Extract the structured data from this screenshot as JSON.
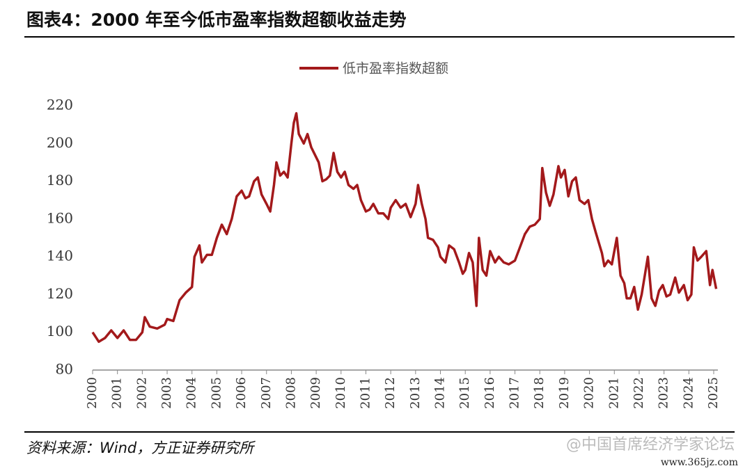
{
  "chart_data": {
    "type": "line",
    "title": "图表4：2000 年至今低市盈率指数超额收益走势",
    "source": "资料来源：Wind，方正证券研究所",
    "watermark": "@中国首席经济学家论坛",
    "watermark_url": "www.365jz.com",
    "xlim": [
      2000,
      2025
    ],
    "xticks": [
      2000,
      2001,
      2002,
      2003,
      2004,
      2005,
      2006,
      2007,
      2008,
      2009,
      2010,
      2011,
      2012,
      2013,
      2014,
      2015,
      2016,
      2017,
      2018,
      2019,
      2020,
      2021,
      2022,
      2023,
      2024,
      2025
    ],
    "ylim": [
      80,
      220
    ],
    "yticks": [
      80,
      100,
      120,
      140,
      160,
      180,
      200,
      220
    ],
    "legend": "top",
    "series": [
      {
        "name": "低市盈率指数超额",
        "color": "#a3191b",
        "x": [
          2000.0,
          2000.25,
          2000.5,
          2000.75,
          2001.0,
          2001.25,
          2001.5,
          2001.75,
          2002.0,
          2002.1,
          2002.3,
          2002.6,
          2002.9,
          2003.0,
          2003.25,
          2003.5,
          2003.75,
          2004.0,
          2004.1,
          2004.3,
          2004.4,
          2004.6,
          2004.8,
          2005.0,
          2005.2,
          2005.4,
          2005.6,
          2005.8,
          2006.0,
          2006.15,
          2006.3,
          2006.5,
          2006.65,
          2006.8,
          2007.0,
          2007.15,
          2007.3,
          2007.4,
          2007.55,
          2007.7,
          2007.85,
          2008.0,
          2008.1,
          2008.2,
          2008.3,
          2008.5,
          2008.65,
          2008.8,
          2008.95,
          2009.1,
          2009.25,
          2009.4,
          2009.55,
          2009.7,
          2009.85,
          2010.0,
          2010.15,
          2010.3,
          2010.5,
          2010.65,
          2010.8,
          2011.0,
          2011.15,
          2011.3,
          2011.5,
          2011.7,
          2011.9,
          2012.0,
          2012.2,
          2012.4,
          2012.6,
          2012.8,
          2013.0,
          2013.1,
          2013.25,
          2013.4,
          2013.5,
          2013.7,
          2013.9,
          2014.0,
          2014.2,
          2014.35,
          2014.55,
          2014.75,
          2014.9,
          2015.0,
          2015.15,
          2015.3,
          2015.45,
          2015.55,
          2015.7,
          2015.85,
          2016.0,
          2016.2,
          2016.35,
          2016.55,
          2016.75,
          2017.0,
          2017.2,
          2017.4,
          2017.6,
          2017.8,
          2018.0,
          2018.1,
          2018.25,
          2018.4,
          2018.55,
          2018.75,
          2018.85,
          2019.0,
          2019.15,
          2019.3,
          2019.45,
          2019.6,
          2019.8,
          2019.95,
          2020.1,
          2020.25,
          2020.5,
          2020.6,
          2020.75,
          2020.9,
          2021.1,
          2021.25,
          2021.4,
          2021.5,
          2021.65,
          2021.8,
          2021.95,
          2022.1,
          2022.25,
          2022.35,
          2022.5,
          2022.65,
          2022.8,
          2022.95,
          2023.1,
          2023.25,
          2023.45,
          2023.6,
          2023.8,
          2023.95,
          2024.1,
          2024.2,
          2024.35,
          2024.5,
          2024.7,
          2024.85,
          2024.95,
          2025.1
        ],
        "values": [
          100,
          95,
          97,
          101,
          97,
          101,
          96,
          96,
          100,
          108,
          103,
          102,
          104,
          107,
          106,
          117,
          121,
          124,
          140,
          146,
          137,
          141,
          141,
          150,
          157,
          152,
          160,
          172,
          175,
          171,
          172,
          180,
          182,
          173,
          168,
          164,
          178,
          190,
          183,
          185,
          182,
          200,
          211,
          216,
          205,
          200,
          205,
          198,
          194,
          190,
          180,
          181,
          183,
          195,
          185,
          182,
          185,
          178,
          176,
          178,
          170,
          164,
          165,
          168,
          163,
          163,
          160,
          166,
          170,
          166,
          168,
          161,
          168,
          178,
          168,
          160,
          150,
          149,
          145,
          140,
          137,
          146,
          144,
          137,
          131,
          133,
          142,
          137,
          114,
          150,
          133,
          130,
          143,
          137,
          140,
          137,
          136,
          138,
          145,
          152,
          156,
          157,
          160,
          187,
          174,
          167,
          173,
          188,
          182,
          186,
          172,
          180,
          182,
          170,
          168,
          170,
          160,
          153,
          142,
          135,
          138,
          136,
          150,
          130,
          126,
          118,
          118,
          124,
          112,
          120,
          132,
          140,
          118,
          114,
          122,
          125,
          119,
          120,
          129,
          121,
          125,
          117,
          120,
          145,
          138,
          140,
          143,
          125,
          133,
          123
        ]
      }
    ]
  }
}
